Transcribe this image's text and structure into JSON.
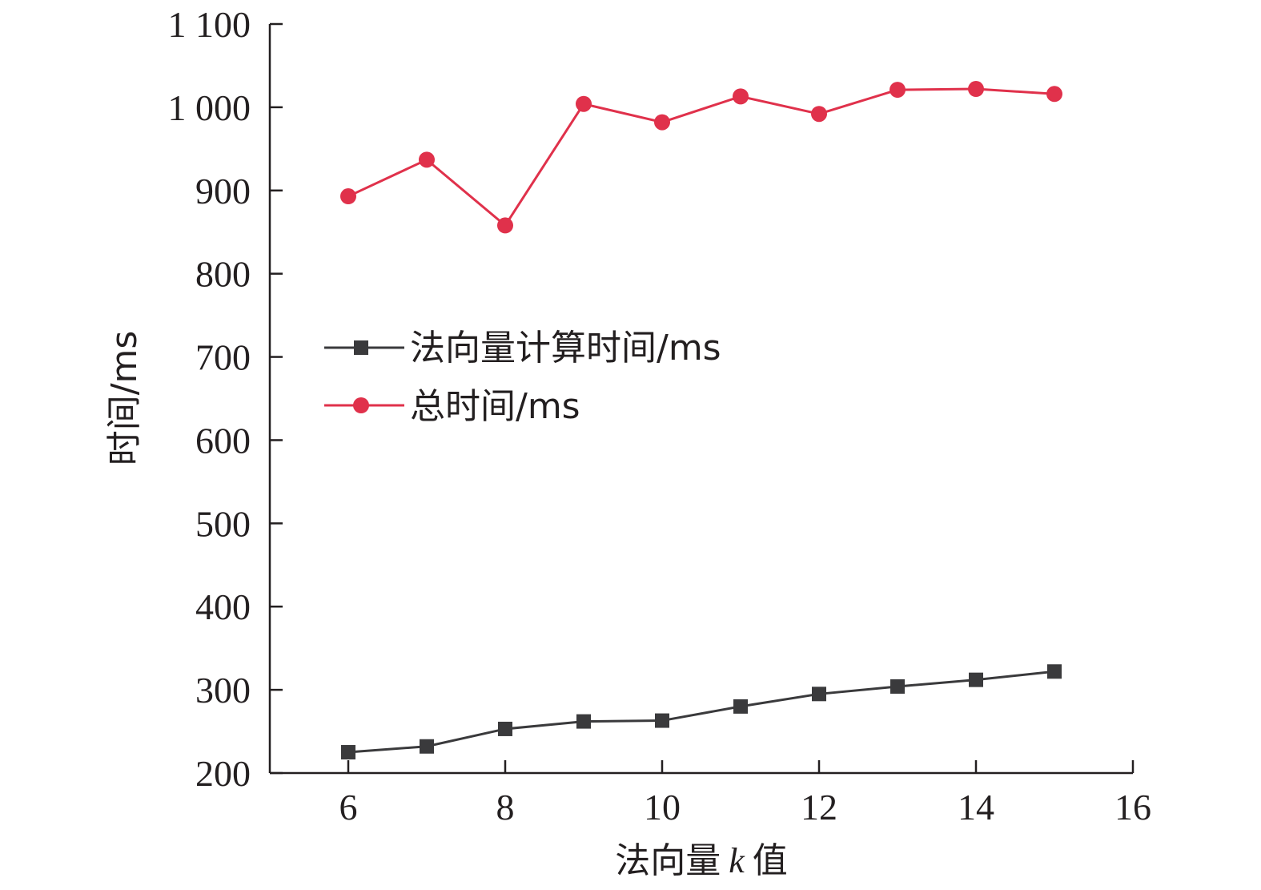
{
  "chart_data": {
    "type": "line",
    "xlabel_prefix": "法向量",
    "xlabel_var": "k",
    "xlabel_suffix": "值",
    "ylabel": "时间/ms",
    "xlim": [
      5,
      16
    ],
    "ylim": [
      200,
      1100
    ],
    "xticks": [
      6,
      8,
      10,
      12,
      14,
      16
    ],
    "yticks": [
      200,
      300,
      400,
      500,
      600,
      700,
      800,
      900,
      1000,
      1100
    ],
    "ytick_labels": [
      "200",
      "300",
      "400",
      "500",
      "600",
      "700",
      "800",
      "900",
      "1 000",
      "1 100"
    ],
    "legend_position": "center-left",
    "series": [
      {
        "name": "法向量计算时间/ms",
        "color": "#3a3a3c",
        "marker": "square",
        "x": [
          6,
          7,
          8,
          9,
          10,
          11,
          12,
          13,
          14,
          15
        ],
        "values": [
          225,
          232,
          253,
          262,
          263,
          280,
          295,
          304,
          312,
          322
        ]
      },
      {
        "name": "总时间/ms",
        "color": "#e0314b",
        "marker": "circle",
        "x": [
          6,
          7,
          8,
          9,
          10,
          11,
          12,
          13,
          14,
          15
        ],
        "values": [
          893,
          937,
          858,
          1004,
          982,
          1013,
          992,
          1021,
          1022,
          1016
        ]
      }
    ]
  }
}
